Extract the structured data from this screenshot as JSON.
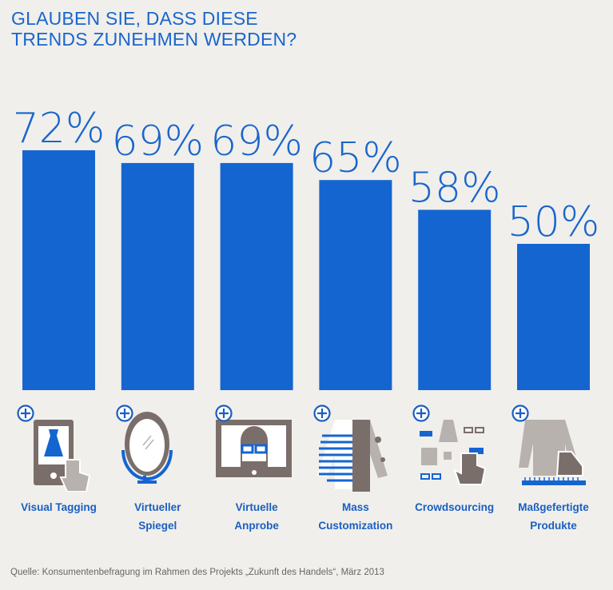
{
  "chart_data": {
    "type": "bar",
    "title": "GLAUBEN SIE, DASS DIESE\nTRENDS ZUNEHMEN WERDEN?",
    "categories": [
      "Visual Tagging",
      "Virtueller\nSpiegel",
      "Virtuelle\nAnprobe",
      "Mass\nCustomization",
      "Crowdsourcing",
      "Maßgefertigte\nProdukte"
    ],
    "values": [
      72,
      69,
      69,
      65,
      58,
      50
    ],
    "value_labels": [
      "72%",
      "69%",
      "69%",
      "65%",
      "58%",
      "50%"
    ],
    "unit": "%",
    "xlabel": "",
    "ylabel": "",
    "grid": false,
    "colors": {
      "bar": "#1565d0",
      "text": "#1a66cc",
      "icon_gray": "#7a6e6b",
      "icon_light": "#b8b2af",
      "background": "#f0efec"
    }
  },
  "icons": [
    "tablet-dress-tap-icon",
    "mirror-icon",
    "monitor-glasses-woman-icon",
    "patterned-jacket-icon",
    "crowd-items-hand-icon",
    "jacket-shoe-ruler-icon"
  ],
  "source": "Quelle: Konsumentenbefragung im Rahmen des Projekts „Zukunft des Handels“, März 2013"
}
